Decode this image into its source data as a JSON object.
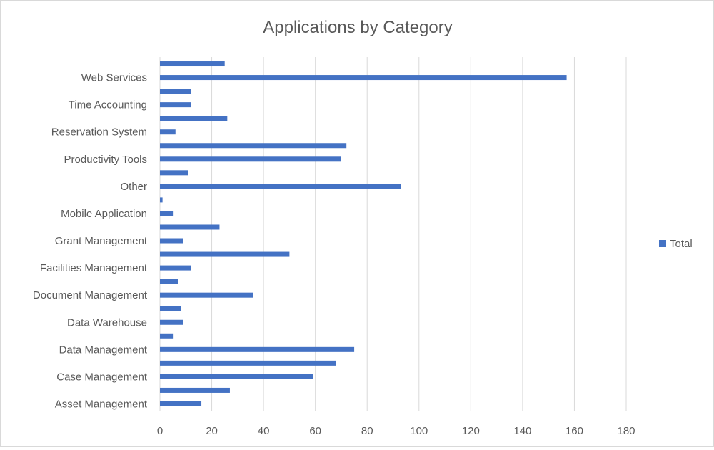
{
  "chart_data": {
    "type": "bar",
    "orientation": "horizontal",
    "title": "Applications by Category",
    "xlabel": "",
    "ylabel": "",
    "xlim": [
      0,
      180
    ],
    "x_ticks": [
      "0",
      "20",
      "40",
      "60",
      "80",
      "100",
      "120",
      "140",
      "160",
      "180"
    ],
    "grid": "vertical",
    "legend": {
      "position": "right",
      "entries": [
        "Total"
      ]
    },
    "color": "#4472c4",
    "categories_bottom_to_top": [
      "Asset Management",
      "",
      "Case Management",
      "",
      "Data Management",
      "",
      "Data Warehouse",
      "",
      "Document Management",
      "",
      "Facilities Management",
      "",
      "Grant Management",
      "",
      "Mobile Application",
      "",
      "Other",
      "",
      "Productivity Tools",
      "",
      "Reservation System",
      "",
      "Time Accounting",
      "",
      "Web Services",
      ""
    ],
    "series": [
      {
        "name": "Total",
        "values_bottom_to_top": [
          16,
          27,
          59,
          68,
          75,
          5,
          9,
          8,
          36,
          7,
          12,
          50,
          9,
          23,
          5,
          1,
          93,
          11,
          70,
          72,
          6,
          26,
          12,
          12,
          157,
          25
        ]
      }
    ]
  }
}
